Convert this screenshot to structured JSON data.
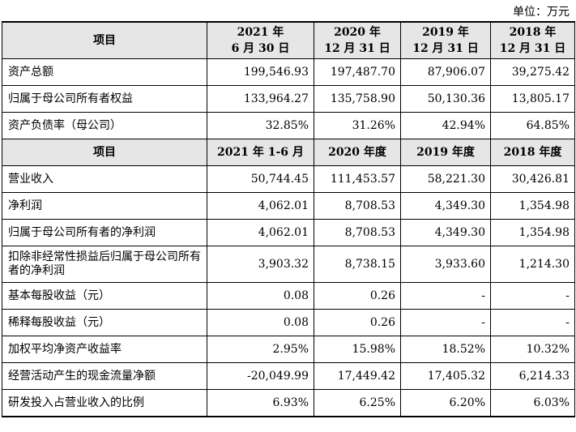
{
  "unit": "单位：万元",
  "header1": {
    "item": "项目",
    "cols": [
      {
        "line1": "2021 年",
        "line2": "6 月 30 日"
      },
      {
        "line1": "2020 年",
        "line2": "12 月 31 日"
      },
      {
        "line1": "2019 年",
        "line2": "12 月 31 日"
      },
      {
        "line1": "2018 年",
        "line2": "12 月 31 日"
      }
    ]
  },
  "rows1": [
    {
      "label": "资产总额",
      "values": [
        "199,546.93",
        "197,487.70",
        "87,906.07",
        "39,275.42"
      ]
    },
    {
      "label": "归属于母公司所有者权益",
      "values": [
        "133,964.27",
        "135,758.90",
        "50,130.36",
        "13,805.17"
      ]
    },
    {
      "label": "资产负债率（母公司）",
      "values": [
        "32.85%",
        "31.26%",
        "42.94%",
        "64.85%"
      ]
    }
  ],
  "header2": {
    "item": "项目",
    "cols": [
      "2021 年 1-6 月",
      "2020 年度",
      "2019 年度",
      "2018 年度"
    ]
  },
  "rows2": [
    {
      "label": "营业收入",
      "values": [
        "50,744.45",
        "111,453.57",
        "58,221.30",
        "30,426.81"
      ]
    },
    {
      "label": "净利润",
      "values": [
        "4,062.01",
        "8,708.53",
        "4,349.30",
        "1,354.98"
      ]
    },
    {
      "label": "归属于母公司所有者的净利润",
      "values": [
        "4,062.01",
        "8,708.53",
        "4,349.30",
        "1,354.98"
      ]
    },
    {
      "label": "扣除非经常性损益后归属于母公司所有者的净利润",
      "values": [
        "3,903.32",
        "8,738.15",
        "3,933.60",
        "1,214.30"
      ]
    },
    {
      "label": "基本每股收益（元）",
      "values": [
        "0.08",
        "0.26",
        "-",
        "-"
      ]
    },
    {
      "label": "稀释每股收益（元）",
      "values": [
        "0.08",
        "0.26",
        "-",
        "-"
      ]
    },
    {
      "label": "加权平均净资产收益率",
      "values": [
        "2.95%",
        "15.98%",
        "18.52%",
        "10.32%"
      ]
    },
    {
      "label": "经营活动产生的现金流量净额",
      "values": [
        "-20,049.99",
        "17,449.42",
        "17,405.32",
        "6,214.33"
      ]
    },
    {
      "label": "研发投入占营业收入的比例",
      "values": [
        "6.93%",
        "6.25%",
        "6.20%",
        "6.03%"
      ]
    }
  ]
}
